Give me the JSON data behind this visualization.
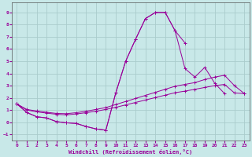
{
  "xlabel": "Windchill (Refroidissement éolien,°C)",
  "xlim": [
    -0.5,
    23.5
  ],
  "ylim": [
    -1.5,
    9.8
  ],
  "yticks": [
    -1,
    0,
    1,
    2,
    3,
    4,
    5,
    6,
    7,
    8,
    9
  ],
  "xticks": [
    0,
    1,
    2,
    3,
    4,
    5,
    6,
    7,
    8,
    9,
    10,
    11,
    12,
    13,
    14,
    15,
    16,
    17,
    18,
    19,
    20,
    21,
    22,
    23
  ],
  "bg_color": "#c8e8e8",
  "grid_color": "#aacccc",
  "line_color": "#990099",
  "curve1_x": [
    0,
    1,
    2,
    3,
    4,
    5,
    6,
    7,
    8,
    9,
    10,
    11,
    12,
    13,
    14,
    15,
    16,
    17
  ],
  "curve1_y": [
    1.5,
    0.8,
    0.45,
    0.35,
    0.05,
    -0.05,
    -0.1,
    -0.35,
    -0.55,
    -0.65,
    2.4,
    5.0,
    6.8,
    8.5,
    9.0,
    9.0,
    7.5,
    6.5
  ],
  "curve2_x": [
    0,
    1,
    2,
    3,
    4,
    5,
    6,
    7,
    8,
    9,
    10,
    11,
    12,
    13,
    14,
    15,
    16,
    17,
    18,
    19,
    20,
    21
  ],
  "curve2_y": [
    1.5,
    0.8,
    0.45,
    0.35,
    0.05,
    -0.05,
    -0.1,
    -0.35,
    -0.55,
    -0.65,
    2.4,
    5.0,
    6.8,
    8.5,
    9.0,
    9.0,
    7.5,
    4.4,
    3.7,
    4.5,
    3.2,
    2.35
  ],
  "curve3_x": [
    0,
    1,
    2,
    3,
    4,
    5,
    6,
    7,
    8,
    9,
    10,
    11,
    12,
    13,
    14,
    15,
    16,
    17,
    18,
    19,
    20,
    21,
    22,
    23
  ],
  "curve3_y": [
    1.5,
    1.0,
    0.85,
    0.75,
    0.65,
    0.6,
    0.68,
    0.78,
    0.9,
    1.05,
    1.22,
    1.42,
    1.62,
    1.82,
    2.02,
    2.22,
    2.42,
    2.55,
    2.7,
    2.85,
    3.0,
    3.1,
    2.4,
    2.35
  ],
  "curve4_x": [
    0,
    1,
    2,
    3,
    4,
    5,
    6,
    7,
    8,
    9,
    10,
    11,
    12,
    13,
    14,
    15,
    16,
    17,
    18,
    19,
    20,
    21,
    22,
    23
  ],
  "curve4_y": [
    1.5,
    1.05,
    0.92,
    0.82,
    0.72,
    0.7,
    0.78,
    0.9,
    1.05,
    1.2,
    1.45,
    1.7,
    1.95,
    2.2,
    2.45,
    2.7,
    2.95,
    3.1,
    3.25,
    3.5,
    3.7,
    3.85,
    3.0,
    2.35
  ]
}
